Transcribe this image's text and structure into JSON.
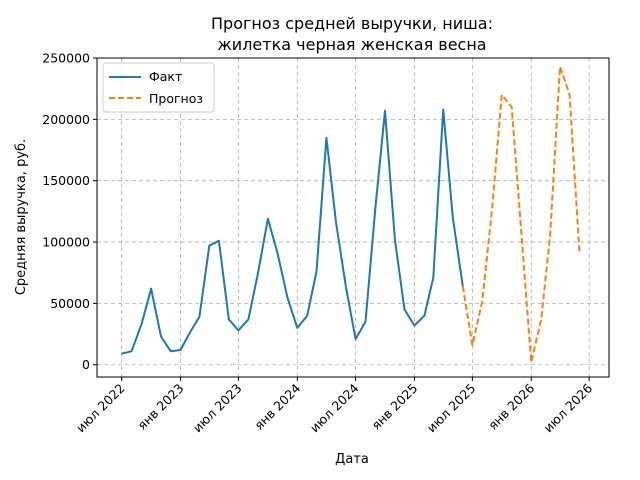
{
  "chart_data": {
    "type": "line",
    "title_line1": "Прогноз средней выручки, ниша:",
    "title_line2": "жилетка черная женская весна",
    "xlabel": "Дата",
    "ylabel": "Средняя выручка, руб.",
    "ylim": [
      -10000,
      250000
    ],
    "yticks": [
      0,
      50000,
      100000,
      150000,
      200000,
      250000
    ],
    "ytick_labels": [
      "0",
      "50000",
      "100000",
      "150000",
      "200000",
      "250000"
    ],
    "xticks": [
      {
        "date": "2022-07-01",
        "label": "июл 2022"
      },
      {
        "date": "2023-01-01",
        "label": "янв 2023"
      },
      {
        "date": "2023-07-01",
        "label": "июл 2023"
      },
      {
        "date": "2024-01-01",
        "label": "янв 2024"
      },
      {
        "date": "2024-07-01",
        "label": "июл 2024"
      },
      {
        "date": "2025-01-01",
        "label": "янв 2025"
      },
      {
        "date": "2025-07-01",
        "label": "июл 2025"
      },
      {
        "date": "2026-01-01",
        "label": "янв 2026"
      },
      {
        "date": "2026-07-01",
        "label": "июл 2026"
      }
    ],
    "xlim": [
      "2022-04-15",
      "2026-09-01"
    ],
    "grid": true,
    "legend_position": "top-left",
    "series": [
      {
        "name": "Факт",
        "color": "#1f77b4",
        "style": "solid",
        "points": [
          [
            "2022-07-01",
            9000
          ],
          [
            "2022-08-01",
            11000
          ],
          [
            "2022-09-01",
            33000
          ],
          [
            "2022-10-01",
            62000
          ],
          [
            "2022-11-01",
            23000
          ],
          [
            "2022-12-01",
            11000
          ],
          [
            "2023-01-01",
            12000
          ],
          [
            "2023-02-01",
            27000
          ],
          [
            "2023-03-01",
            39000
          ],
          [
            "2023-04-01",
            97000
          ],
          [
            "2023-05-01",
            101000
          ],
          [
            "2023-06-01",
            37000
          ],
          [
            "2023-07-01",
            28000
          ],
          [
            "2023-08-01",
            37000
          ],
          [
            "2023-09-01",
            76000
          ],
          [
            "2023-10-01",
            119000
          ],
          [
            "2023-11-01",
            90000
          ],
          [
            "2023-12-01",
            55000
          ],
          [
            "2024-01-01",
            30000
          ],
          [
            "2024-02-01",
            40000
          ],
          [
            "2024-03-01",
            76000
          ],
          [
            "2024-04-01",
            185000
          ],
          [
            "2024-05-01",
            116000
          ],
          [
            "2024-06-01",
            63000
          ],
          [
            "2024-07-01",
            21000
          ],
          [
            "2024-08-01",
            35000
          ],
          [
            "2024-09-01",
            128000
          ],
          [
            "2024-10-01",
            207000
          ],
          [
            "2024-11-01",
            102000
          ],
          [
            "2024-12-01",
            45000
          ],
          [
            "2025-01-01",
            32000
          ],
          [
            "2025-02-01",
            40000
          ],
          [
            "2025-03-01",
            71000
          ],
          [
            "2025-04-01",
            208000
          ],
          [
            "2025-05-01",
            120000
          ],
          [
            "2025-06-01",
            64000
          ]
        ]
      },
      {
        "name": "Прогноз",
        "color": "#ff7f0e",
        "style": "dashed",
        "points": [
          [
            "2025-06-01",
            64000
          ],
          [
            "2025-07-01",
            16000
          ],
          [
            "2025-08-01",
            52000
          ],
          [
            "2025-09-01",
            128000
          ],
          [
            "2025-10-01",
            220000
          ],
          [
            "2025-11-01",
            210000
          ],
          [
            "2025-12-01",
            108000
          ],
          [
            "2026-01-01",
            2000
          ],
          [
            "2026-02-01",
            37000
          ],
          [
            "2026-03-01",
            105000
          ],
          [
            "2026-04-01",
            243000
          ],
          [
            "2026-05-01",
            220000
          ],
          [
            "2026-06-01",
            90000
          ]
        ]
      }
    ]
  }
}
